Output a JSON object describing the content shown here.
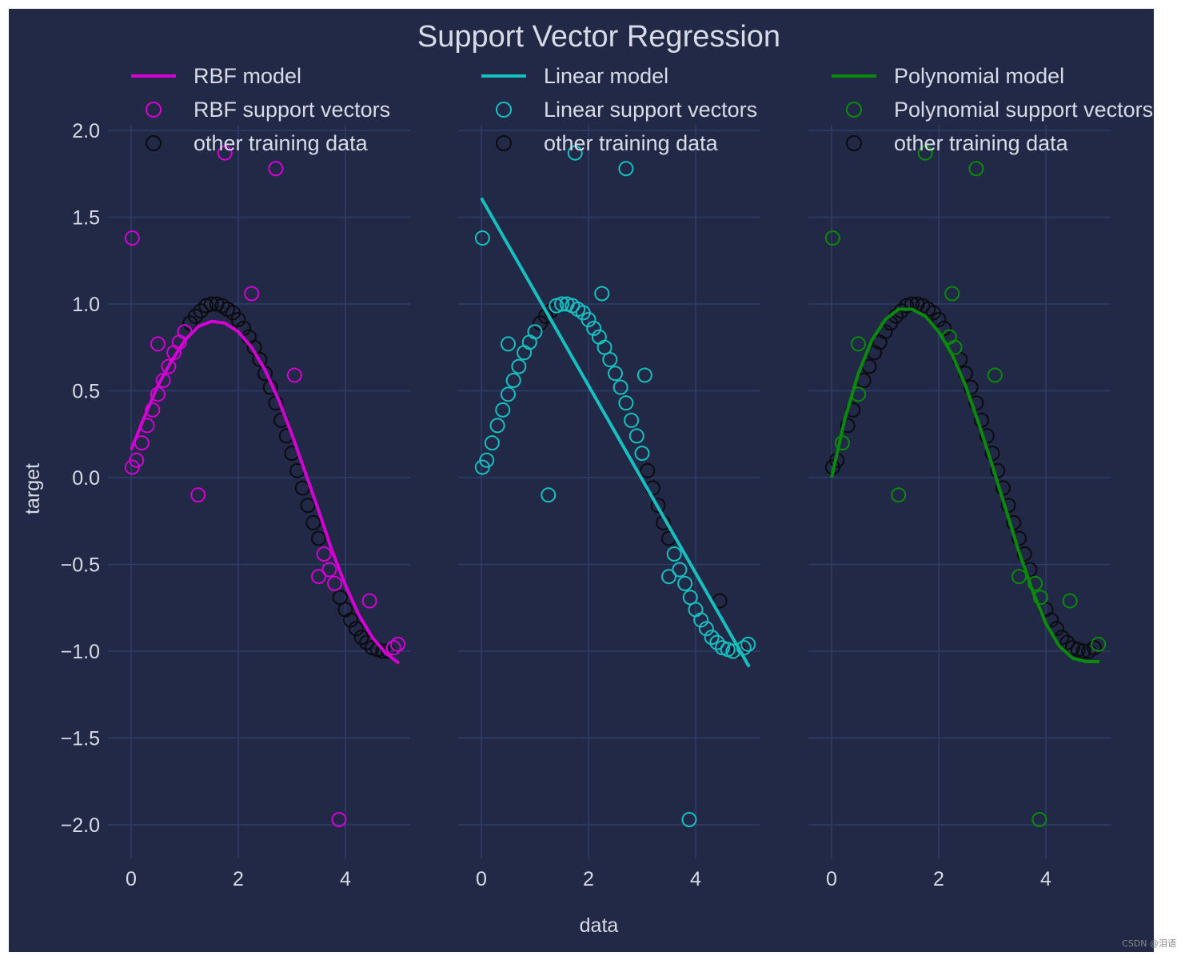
{
  "chart_data": {
    "type": "scatter",
    "title": "Support Vector Regression",
    "xlabel": "data",
    "ylabel": "target",
    "shared_y": true,
    "xlim": [
      -0.25,
      5.25
    ],
    "ylim": [
      -2.2,
      2.1
    ],
    "xticks": [
      0,
      2,
      4
    ],
    "xtick_labels": [
      "0",
      "2",
      "4"
    ],
    "yticks": [
      2.0,
      1.5,
      1.0,
      0.5,
      0.0,
      -0.5,
      -1.0,
      -1.5,
      -2.0
    ],
    "ytick_labels": [
      "2.0",
      "1.5",
      "1.0",
      "0.5",
      "0.0",
      "−0.5",
      "−1.0",
      "−1.5",
      "−2.0"
    ],
    "grid": true,
    "background": "#212946",
    "training_data": {
      "x": [
        0.02,
        0.1,
        0.2,
        0.3,
        0.4,
        0.5,
        0.6,
        0.7,
        0.8,
        0.9,
        1.0,
        1.1,
        1.2,
        1.3,
        1.4,
        1.5,
        1.6,
        1.7,
        1.8,
        1.9,
        2.0,
        2.1,
        2.2,
        2.3,
        2.4,
        2.5,
        2.6,
        2.7,
        2.8,
        2.9,
        3.0,
        3.1,
        3.2,
        3.3,
        3.4,
        3.5,
        3.6,
        3.7,
        3.8,
        3.9,
        4.0,
        4.1,
        4.2,
        4.3,
        4.4,
        4.5,
        4.6,
        4.7,
        4.8,
        4.9
      ],
      "y": [
        0.06,
        0.1,
        0.2,
        0.3,
        0.39,
        0.48,
        0.56,
        0.64,
        0.72,
        0.78,
        0.84,
        0.89,
        0.93,
        0.96,
        0.99,
        1.0,
        1.0,
        0.99,
        0.97,
        0.95,
        0.91,
        0.86,
        0.81,
        0.75,
        0.68,
        0.6,
        0.52,
        0.43,
        0.33,
        0.24,
        0.14,
        0.04,
        -0.06,
        -0.16,
        -0.26,
        -0.35,
        -0.44,
        -0.53,
        -0.61,
        -0.69,
        -0.76,
        -0.82,
        -0.87,
        -0.92,
        -0.95,
        -0.98,
        -0.99,
        -1.0,
        -1.0,
        -0.98
      ],
      "noisy_x": [
        0.02,
        0.5,
        1.25,
        1.75,
        2.25,
        2.7,
        3.05,
        3.5,
        3.88,
        4.45,
        4.98
      ],
      "noisy_y": [
        1.38,
        0.77,
        -0.1,
        1.87,
        1.06,
        1.78,
        0.59,
        -0.57,
        -1.97,
        -0.71,
        -0.96
      ]
    },
    "panels": [
      {
        "kernel": "RBF",
        "color": "#d400d4",
        "model_label": "RBF model",
        "sv_label": "RBF support vectors",
        "other_label": "other training data",
        "model_x": [
          0.0,
          0.25,
          0.5,
          0.75,
          1.0,
          1.25,
          1.5,
          1.75,
          2.0,
          2.25,
          2.5,
          2.75,
          3.0,
          3.25,
          3.5,
          3.75,
          4.0,
          4.25,
          4.5,
          4.75,
          5.0
        ],
        "model_y": [
          0.16,
          0.35,
          0.53,
          0.67,
          0.79,
          0.87,
          0.9,
          0.89,
          0.84,
          0.75,
          0.62,
          0.45,
          0.25,
          0.03,
          -0.19,
          -0.42,
          -0.62,
          -0.79,
          -0.92,
          -1.01,
          -1.07
        ],
        "sv_indices": [
          0,
          1,
          2,
          3,
          4,
          5,
          6,
          7,
          8,
          9,
          10,
          36,
          37,
          38,
          49
        ],
        "sv_extra": "all_noisy"
      },
      {
        "kernel": "Linear",
        "color": "#17bfbf",
        "model_label": "Linear model",
        "sv_label": "Linear support vectors",
        "other_label": "other training data",
        "model_x": [
          0.0,
          5.0
        ],
        "model_y": [
          1.61,
          -1.09
        ],
        "sv_indices": [
          0,
          1,
          2,
          3,
          4,
          5,
          6,
          7,
          8,
          9,
          10,
          14,
          15,
          16,
          17,
          18,
          19,
          20,
          21,
          22,
          23,
          24,
          25,
          26,
          27,
          28,
          29,
          30,
          36,
          37,
          38,
          39,
          40,
          41,
          42,
          43,
          44,
          45,
          46,
          47,
          49
        ],
        "sv_extra": "all_noisy_except_last_but_one"
      },
      {
        "kernel": "Polynomial",
        "color": "#0a8a0a",
        "model_label": "Polynomial model",
        "sv_label": "Polynomial support vectors",
        "other_label": "other training data",
        "model_x": [
          0.0,
          0.25,
          0.5,
          0.75,
          1.0,
          1.25,
          1.5,
          1.75,
          2.0,
          2.25,
          2.5,
          2.75,
          3.0,
          3.25,
          3.5,
          3.75,
          4.0,
          4.25,
          4.5,
          4.75,
          5.0
        ],
        "model_y": [
          0.0,
          0.34,
          0.6,
          0.79,
          0.91,
          0.97,
          0.97,
          0.93,
          0.84,
          0.71,
          0.53,
          0.31,
          0.07,
          -0.18,
          -0.43,
          -0.65,
          -0.84,
          -0.97,
          -1.04,
          -1.06,
          -1.06
        ],
        "sv_indices": [
          2,
          5,
          22,
          23,
          38,
          39
        ],
        "sv_extra": "all_noisy"
      }
    ]
  },
  "watermark": "CSDN @泪语"
}
